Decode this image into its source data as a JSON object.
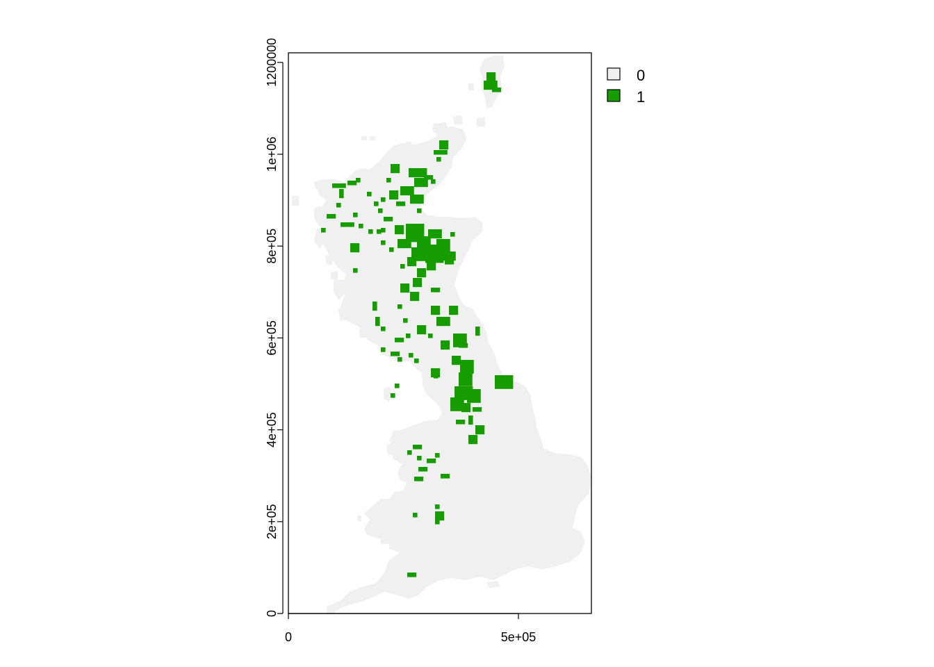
{
  "map": {
    "type": "raster",
    "legend": {
      "entries": [
        {
          "label": "0",
          "color": "#f0f0f0"
        },
        {
          "label": "1",
          "color": "#179c00"
        }
      ]
    },
    "x_axis": {
      "ticks": [
        {
          "value": 0,
          "label": "0"
        },
        {
          "value": 500000,
          "label": "5e+05"
        }
      ],
      "range": [
        0,
        660000
      ]
    },
    "y_axis": {
      "ticks": [
        {
          "value": 0,
          "label": "0"
        },
        {
          "value": 200000,
          "label": "2e+05"
        },
        {
          "value": 400000,
          "label": "4e+05"
        },
        {
          "value": 600000,
          "label": "6e+05"
        },
        {
          "value": 800000,
          "label": "8e+05"
        },
        {
          "value": 1000000,
          "label": "1e+06"
        },
        {
          "value": 1200000,
          "label": "1200000"
        }
      ],
      "range": [
        0,
        1220000
      ]
    },
    "region_fills": {
      "background": "#f0f0f0",
      "presence": "#179c00"
    }
  }
}
